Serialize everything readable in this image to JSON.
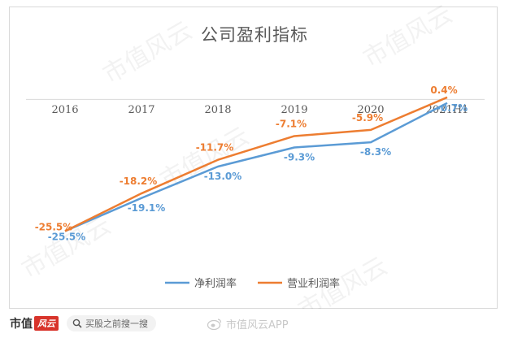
{
  "chart_data": {
    "type": "line",
    "title": "公司盈利指标",
    "categories": [
      "2016",
      "2017",
      "2018",
      "2019",
      "2020",
      "2021H1"
    ],
    "series": [
      {
        "name": "净利润率",
        "values": [
          -25.5,
          -19.1,
          -13.0,
          -9.3,
          -8.3,
          -0.7
        ],
        "labels": [
          "-25.5%",
          "-19.1%",
          "-13.0%",
          "-9.3%",
          "-8.3%",
          "-0.7%"
        ],
        "color": "#5b9bd5"
      },
      {
        "name": "营业利润率",
        "values": [
          -25.5,
          -18.2,
          -11.7,
          -7.1,
          -5.9,
          0.4
        ],
        "labels": [
          "-25.5%",
          "-18.2%",
          "-11.7%",
          "-7.1%",
          "-5.9%",
          "0.4%"
        ],
        "color": "#ed7d31"
      }
    ],
    "xlabel": "",
    "ylabel": "",
    "ylim": [
      -27,
      1
    ],
    "grid": false,
    "legend": "bottom"
  },
  "footer": {
    "brand": "市值",
    "brand_badge": "风云",
    "search_placeholder": "买股之前搜一搜",
    "weibo_text": "市值风云APP"
  },
  "watermark": "市值风云",
  "icons": {
    "search": "search-icon",
    "weibo": "weibo-icon"
  }
}
